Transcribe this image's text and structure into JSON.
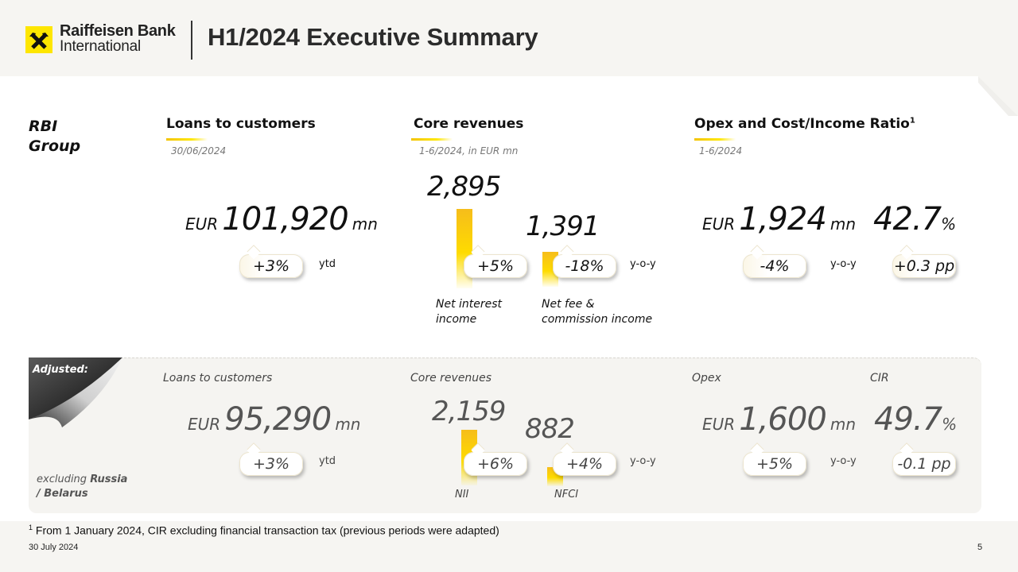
{
  "header": {
    "brand_line1": "Raiffeisen Bank",
    "brand_line2": "International",
    "title": "H1/2024 Executive Summary",
    "brand_color": "#fee600"
  },
  "group": {
    "label_line1": "RBI",
    "label_line2": "Group",
    "loans": {
      "title": "Loans to customers",
      "subtitle": "30/06/2024",
      "currency": "EUR",
      "value": "101,920",
      "unit": "mn",
      "change": "+3%",
      "change_note": "ytd"
    },
    "core_revenues": {
      "title": "Core revenues",
      "subtitle": "1-6/2024, in EUR mn",
      "nii_value": "2,895",
      "nii_change": "+5%",
      "nii_caption_line1": "Net interest",
      "nii_caption_line2": "income",
      "nfci_value": "1,391",
      "nfci_change": "-18%",
      "nfci_caption_line1": "Net fee &",
      "nfci_caption_line2": "commission income",
      "change_note": "y-o-y"
    },
    "opex_cir": {
      "title": "Opex and Cost/Income Ratio",
      "title_sup": "1",
      "subtitle": "1-6/2024",
      "currency": "EUR",
      "opex_value": "1,924",
      "opex_unit": "mn",
      "opex_change": "-4%",
      "change_note": "y-o-y",
      "cir_value": "42.7",
      "cir_unit": "%",
      "cir_change": "+0.3 pp"
    }
  },
  "adjusted": {
    "label": "Adjusted:",
    "excl_prefix": "excluding ",
    "excl_bold_line1": "Russia",
    "excl_bold_line2": "/ Belarus",
    "loans": {
      "title": "Loans to customers",
      "currency": "EUR",
      "value": "95,290",
      "unit": "mn",
      "change": "+3%",
      "change_note": "ytd"
    },
    "core_revenues": {
      "title": "Core revenues",
      "nii_value": "2,159",
      "nii_change": "+6%",
      "nii_caption": "NII",
      "nfci_value": "882",
      "nfci_change": "+4%",
      "nfci_caption": "NFCI",
      "change_note": "y-o-y"
    },
    "opex": {
      "title": "Opex",
      "currency": "EUR",
      "value": "1,600",
      "unit": "mn",
      "change": "+5%",
      "change_note": "y-o-y"
    },
    "cir": {
      "title": "CIR",
      "value": "49.7",
      "unit": "%",
      "change": "-0.1 pp"
    }
  },
  "footer": {
    "footnote_sup": "1",
    "footnote": "From 1 January 2024, CIR excluding financial transaction tax (previous periods were adapted)",
    "date": "30 July 2024",
    "page": "5"
  }
}
